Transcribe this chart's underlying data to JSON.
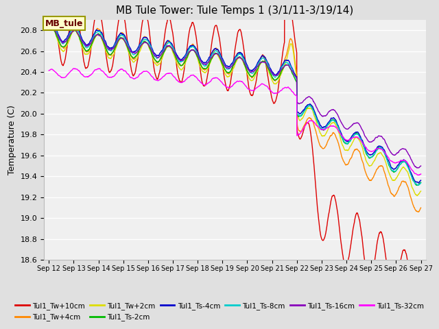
{
  "title": "MB Tule Tower: Tule Temps 1 (3/1/11-3/19/14)",
  "ylabel": "Temperature (C)",
  "ylim": [
    18.6,
    20.9
  ],
  "yticks": [
    18.6,
    18.8,
    19.0,
    19.2,
    19.4,
    19.6,
    19.8,
    20.0,
    20.2,
    20.4,
    20.6,
    20.8
  ],
  "xtick_labels": [
    "Sep 12",
    "Sep 13",
    "Sep 14",
    "Sep 15",
    "Sep 16",
    "Sep 17",
    "Sep 18",
    "Sep 19",
    "Sep 20",
    "Sep 21",
    "Sep 22",
    "Sep 23",
    "Sep 24",
    "Sep 25",
    "Sep 26",
    "Sep 27"
  ],
  "series": [
    {
      "name": "Tul1_Tw+10cm",
      "color": "#dd0000",
      "lw": 1.0
    },
    {
      "name": "Tul1_Tw+4cm",
      "color": "#ff8800",
      "lw": 1.0
    },
    {
      "name": "Tul1_Tw+2cm",
      "color": "#dddd00",
      "lw": 1.0
    },
    {
      "name": "Tul1_Ts-2cm",
      "color": "#00bb00",
      "lw": 1.0
    },
    {
      "name": "Tul1_Ts-4cm",
      "color": "#0000cc",
      "lw": 1.0
    },
    {
      "name": "Tul1_Ts-8cm",
      "color": "#00cccc",
      "lw": 1.0
    },
    {
      "name": "Tul1_Ts-16cm",
      "color": "#8800bb",
      "lw": 1.0
    },
    {
      "name": "Tul1_Ts-32cm",
      "color": "#ff00ff",
      "lw": 1.0
    }
  ],
  "fig_bg": "#e0e0e0",
  "plot_bg": "#f0f0f0",
  "grid_color": "#d0d0d0",
  "annotation_text": "MB_tule",
  "annotation_bg": "#ffffcc",
  "annotation_border": "#999900"
}
